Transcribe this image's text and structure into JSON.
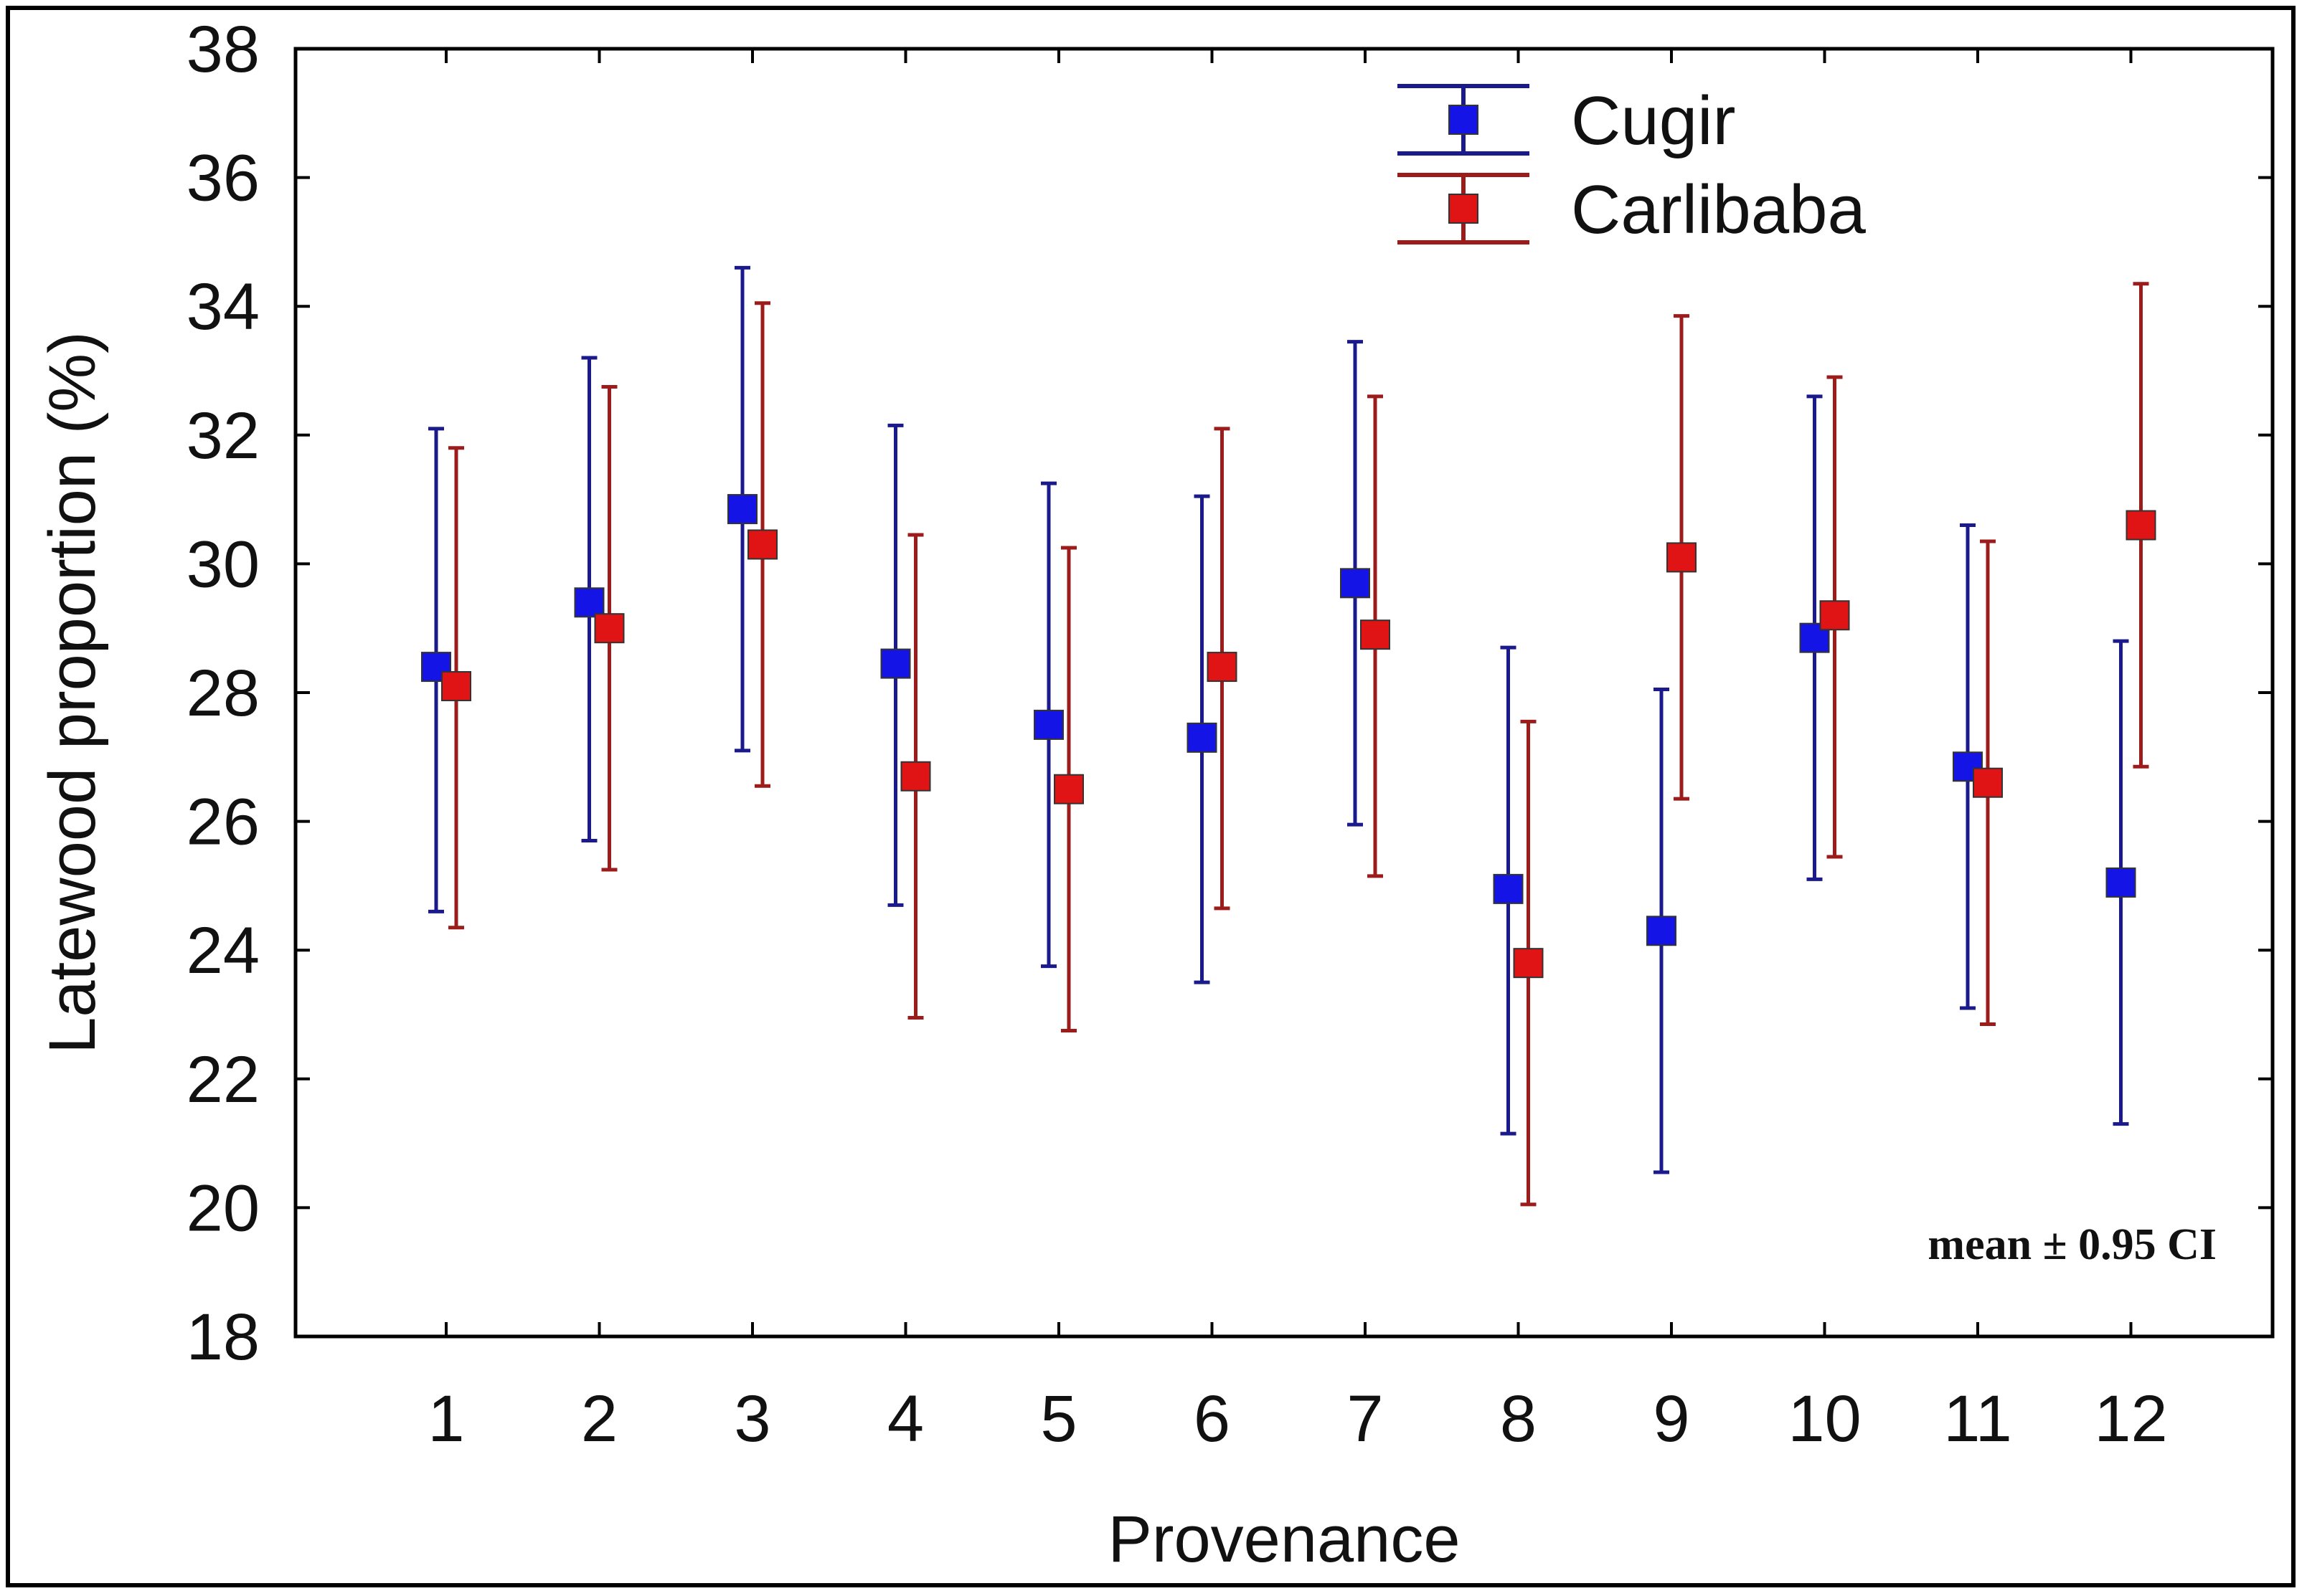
{
  "chart_data": {
    "type": "scatter",
    "subtype": "mean-with-error-bars",
    "xlabel": "Provenance",
    "ylabel": "Latewood proportion (%)",
    "categories": [
      "1",
      "2",
      "3",
      "4",
      "5",
      "6",
      "7",
      "8",
      "9",
      "10",
      "11",
      "12"
    ],
    "ylim": [
      18,
      38
    ],
    "yticks": [
      "18",
      "20",
      "22",
      "24",
      "26",
      "28",
      "30",
      "32",
      "34",
      "36",
      "38"
    ],
    "legend_position": "top-right",
    "annotation": "mean ± 0.95 CI",
    "series": [
      {
        "name": "Cugir",
        "color": "#1414e6",
        "bar_color": "#1a1a8c",
        "mean": [
          28.4,
          29.4,
          30.85,
          28.45,
          27.5,
          27.3,
          29.7,
          24.95,
          24.3,
          28.85,
          26.85,
          25.05
        ],
        "lower": [
          24.6,
          25.7,
          27.1,
          24.7,
          23.75,
          23.5,
          25.95,
          21.15,
          20.55,
          25.1,
          23.1,
          21.3
        ],
        "upper": [
          32.1,
          33.2,
          34.6,
          32.15,
          31.25,
          31.05,
          33.45,
          28.7,
          28.05,
          32.6,
          30.6,
          28.8
        ]
      },
      {
        "name": "Carlibaba",
        "color": "#e01414",
        "bar_color": "#9c1c1c",
        "mean": [
          28.1,
          29.0,
          30.3,
          26.7,
          26.5,
          28.4,
          28.9,
          23.8,
          30.1,
          29.2,
          26.6,
          30.6
        ],
        "lower": [
          24.35,
          25.25,
          26.55,
          22.95,
          22.75,
          24.65,
          25.15,
          20.05,
          26.35,
          25.45,
          22.85,
          26.85
        ],
        "upper": [
          31.8,
          32.75,
          34.05,
          30.45,
          30.25,
          32.1,
          32.6,
          27.55,
          33.85,
          32.9,
          30.35,
          34.35
        ]
      }
    ]
  }
}
